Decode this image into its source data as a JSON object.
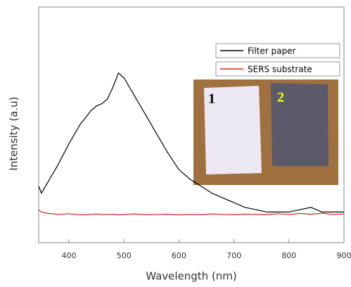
{
  "chart_data": {
    "type": "line",
    "x_label": "Wavelength (nm)",
    "y_label": "Intensity (a.u)",
    "x": [
      345,
      350,
      360,
      380,
      400,
      420,
      440,
      450,
      460,
      470,
      480,
      490,
      500,
      520,
      540,
      560,
      580,
      600,
      620,
      640,
      660,
      680,
      700,
      720,
      740,
      760,
      780,
      800,
      820,
      840,
      860,
      880,
      900
    ],
    "series": [
      {
        "name": "Filter paper",
        "color": "#000000",
        "values": [
          24,
          21,
          25,
          33,
          42,
          50,
          56,
          58,
          59,
          61,
          66,
          72,
          70,
          62,
          54,
          46,
          38,
          31,
          27,
          24,
          21,
          19,
          17,
          15,
          14,
          13,
          13,
          13,
          14,
          15,
          13,
          13,
          13
        ]
      },
      {
        "name": "SERS substrate",
        "color": "#e02020",
        "values": [
          14,
          13,
          12.5,
          12,
          12.3,
          11.8,
          12,
          12.2,
          11.9,
          12,
          12.1,
          11.8,
          12,
          12.2,
          11.9,
          12,
          12.1,
          11.8,
          12,
          11.9,
          12.2,
          12,
          11.9,
          12.1,
          12,
          11.9,
          12.3,
          12,
          12.4,
          12.1,
          12.5,
          12,
          12.2
        ]
      }
    ],
    "xlim": [
      345,
      900
    ],
    "ylim": [
      0,
      100
    ],
    "xticks": [
      400,
      500,
      600,
      700,
      800,
      900
    ],
    "legend": "upper right",
    "annotations": [
      "1",
      "2"
    ]
  }
}
